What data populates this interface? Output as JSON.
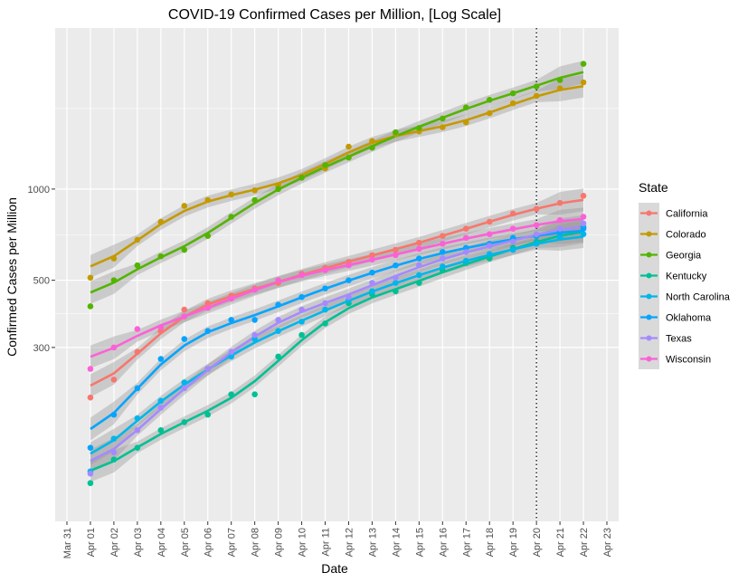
{
  "chart_data": {
    "type": "scatter",
    "title": "COVID-19 Confirmed Cases per Million, [Log Scale]",
    "xlabel": "Date",
    "ylabel": "Confirmed Cases per Million",
    "y_scale": "log",
    "ylim": [
      80,
      3400
    ],
    "xlim": [
      "Mar 31",
      "Apr 23"
    ],
    "y_ticks": [
      300,
      500,
      1000
    ],
    "x_ticks": [
      "Mar 31",
      "Apr 01",
      "Apr 02",
      "Apr 03",
      "Apr 04",
      "Apr 05",
      "Apr 06",
      "Apr 07",
      "Apr 08",
      "Apr 09",
      "Apr 10",
      "Apr 11",
      "Apr 12",
      "Apr 13",
      "Apr 14",
      "Apr 15",
      "Apr 16",
      "Apr 17",
      "Apr 18",
      "Apr 19",
      "Apr 20",
      "Apr 21",
      "Apr 22",
      "Apr 23"
    ],
    "x": [
      "Apr 01",
      "Apr 02",
      "Apr 03",
      "Apr 04",
      "Apr 05",
      "Apr 06",
      "Apr 07",
      "Apr 08",
      "Apr 09",
      "Apr 10",
      "Apr 11",
      "Apr 12",
      "Apr 13",
      "Apr 14",
      "Apr 15",
      "Apr 16",
      "Apr 17",
      "Apr 18",
      "Apr 19",
      "Apr 20",
      "Apr 21",
      "Apr 22"
    ],
    "vline": "Apr 20",
    "smoothing": "loess fit with confidence band",
    "grid": true,
    "legend": {
      "title": "State",
      "position": "right"
    },
    "series": [
      {
        "name": "California",
        "color": "#F8766D",
        "values": [
          205,
          235,
          290,
          340,
          400,
          420,
          445,
          470,
          490,
          525,
          550,
          575,
          605,
          630,
          665,
          700,
          740,
          780,
          830,
          860,
          900,
          950
        ]
      },
      {
        "name": "Colorado",
        "color": "#C49A00",
        "values": [
          510,
          590,
          680,
          780,
          880,
          920,
          960,
          990,
          1030,
          1100,
          1170,
          1380,
          1440,
          1520,
          1550,
          1600,
          1660,
          1780,
          1920,
          2030,
          2150,
          2250
        ]
      },
      {
        "name": "Georgia",
        "color": "#53B400",
        "values": [
          410,
          500,
          560,
          600,
          630,
          700,
          810,
          920,
          1000,
          1090,
          1200,
          1270,
          1370,
          1540,
          1590,
          1710,
          1860,
          1970,
          2070,
          2180,
          2290,
          2590
        ]
      },
      {
        "name": "Kentucky",
        "color": "#00C094",
        "values": [
          107,
          128,
          140,
          160,
          170,
          180,
          210,
          210,
          280,
          330,
          360,
          420,
          450,
          460,
          490,
          540,
          570,
          590,
          640,
          670,
          700,
          750
        ]
      },
      {
        "name": "North Carolina",
        "color": "#00B6EB",
        "values": [
          117,
          150,
          175,
          200,
          230,
          255,
          280,
          320,
          340,
          365,
          400,
          430,
          460,
          490,
          520,
          555,
          580,
          610,
          630,
          660,
          690,
          710
        ]
      },
      {
        "name": "Oklahoma",
        "color": "#06A4FF",
        "values": [
          140,
          180,
          220,
          275,
          320,
          340,
          370,
          370,
          415,
          440,
          470,
          500,
          530,
          560,
          590,
          620,
          640,
          660,
          690,
          700,
          720,
          740
        ]
      },
      {
        "name": "Texas",
        "color": "#A58AFF",
        "values": [
          115,
          135,
          160,
          190,
          220,
          255,
          290,
          330,
          370,
          400,
          420,
          440,
          490,
          510,
          560,
          590,
          620,
          650,
          670,
          710,
          740,
          770
        ]
      },
      {
        "name": "Wisconsin",
        "color": "#FB61D7",
        "values": [
          255,
          300,
          345,
          350,
          380,
          405,
          435,
          465,
          500,
          520,
          540,
          560,
          585,
          605,
          635,
          660,
          690,
          710,
          740,
          760,
          790,
          810
        ]
      }
    ]
  }
}
